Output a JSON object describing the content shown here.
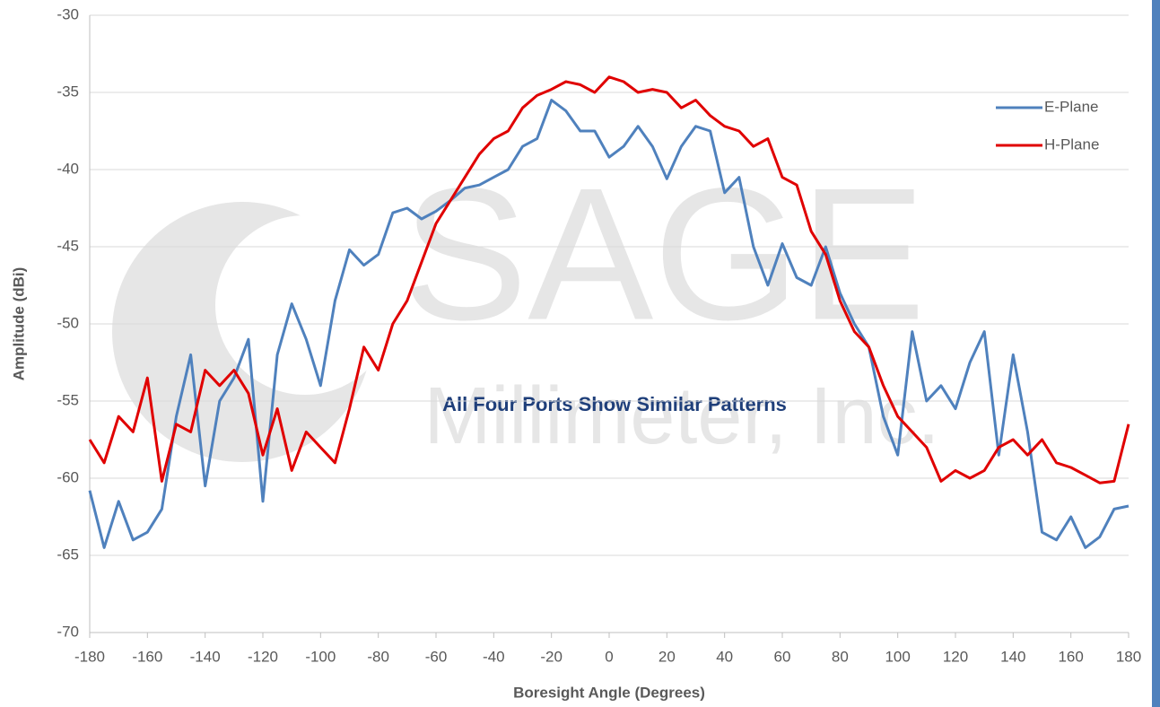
{
  "chart_data": {
    "type": "line",
    "xlabel": "Boresight Angle (Degrees)",
    "ylabel": "Amplitude (dBi)",
    "annotation": "All Four Ports Show Similar Patterns",
    "watermark": [
      "SAGE",
      "Millimeter, Inc."
    ],
    "legend": "upper right",
    "grid": true,
    "xlim": [
      -180,
      180
    ],
    "xticks": [
      -180,
      -160,
      -140,
      -120,
      -100,
      -80,
      -60,
      -40,
      -20,
      0,
      20,
      40,
      60,
      80,
      100,
      120,
      140,
      160,
      180
    ],
    "ylim": [
      -70,
      -30
    ],
    "yticks": [
      -70,
      -65,
      -60,
      -55,
      -50,
      -45,
      -40,
      -35,
      -30
    ],
    "x": [
      -180,
      -175,
      -170,
      -165,
      -160,
      -155,
      -150,
      -145,
      -140,
      -135,
      -130,
      -125,
      -120,
      -115,
      -110,
      -105,
      -100,
      -95,
      -90,
      -85,
      -80,
      -75,
      -70,
      -65,
      -60,
      -55,
      -50,
      -45,
      -40,
      -35,
      -30,
      -25,
      -20,
      -15,
      -10,
      -5,
      0,
      5,
      10,
      15,
      20,
      25,
      30,
      35,
      40,
      45,
      50,
      55,
      60,
      65,
      70,
      75,
      80,
      85,
      90,
      95,
      100,
      105,
      110,
      115,
      120,
      125,
      130,
      135,
      140,
      145,
      150,
      155,
      160,
      165,
      170,
      175,
      180
    ],
    "series": [
      {
        "name": "E-Plane",
        "color": "#4f81bd",
        "values": [
          -60.8,
          -64.5,
          -61.5,
          -64,
          -63.5,
          -62,
          -56,
          -52,
          -60.5,
          -55,
          -53.5,
          -51,
          -61.5,
          -52,
          -48.7,
          -51,
          -54,
          -48.5,
          -45.2,
          -46.2,
          -45.5,
          -42.8,
          -42.5,
          -43.2,
          -42.7,
          -42,
          -41.2,
          -41,
          -40.5,
          -40,
          -38.5,
          -38,
          -35.5,
          -36.2,
          -37.5,
          -37.5,
          -39.2,
          -38.5,
          -37.2,
          -38.5,
          -40.6,
          -38.5,
          -37.2,
          -37.5,
          -41.5,
          -40.5,
          -45,
          -47.5,
          -44.8,
          -47,
          -47.5,
          -45,
          -48,
          -50,
          -51.5,
          -56,
          -58.5,
          -50.5,
          -55,
          -54,
          -55.5,
          -52.5,
          -50.5,
          -58.5,
          -52,
          -57,
          -63.5,
          -64,
          -62.5,
          -64.5,
          -63.8,
          -62,
          -61.8
        ]
      },
      {
        "name": "H-Plane",
        "color": "#e00000",
        "values": [
          -57.5,
          -59,
          -56,
          -57,
          -53.5,
          -60.2,
          -56.5,
          -57,
          -53,
          -54,
          -53,
          -54.5,
          -58.5,
          -55.5,
          -59.5,
          -57,
          -58,
          -59,
          -55.5,
          -51.5,
          -53,
          -50,
          -48.5,
          -46,
          -43.5,
          -42,
          -40.5,
          -39,
          -38,
          -37.5,
          -36,
          -35.2,
          -34.8,
          -34.3,
          -34.5,
          -35,
          -34,
          -34.3,
          -35,
          -34.8,
          -35,
          -36,
          -35.5,
          -36.5,
          -37.2,
          -37.5,
          -38.5,
          -38,
          -40.5,
          -41,
          -44,
          -45.5,
          -48.5,
          -50.5,
          -51.5,
          -54,
          -56,
          -57,
          -58,
          -60.2,
          -59.5,
          -60,
          -59.5,
          -58,
          -57.5,
          -58.5,
          -57.5,
          -59,
          -59.3,
          -59.8,
          -60.3,
          -60.2,
          -56.5
        ]
      }
    ]
  }
}
